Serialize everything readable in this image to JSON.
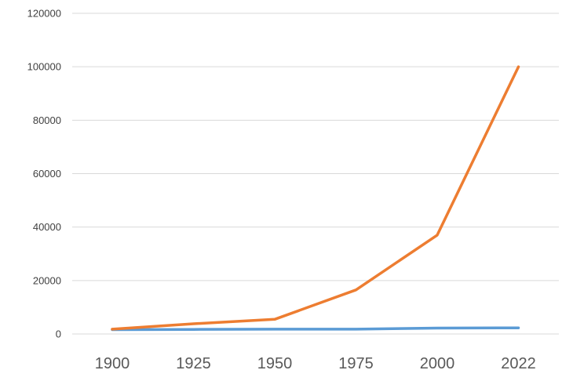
{
  "chart_data": {
    "type": "line",
    "title": "",
    "xlabel": "",
    "ylabel": "",
    "categories": [
      "1900",
      "1925",
      "1950",
      "1975",
      "2000",
      "2022"
    ],
    "yticks": [
      "0",
      "20000",
      "40000",
      "60000",
      "80000",
      "100000",
      "120000"
    ],
    "ylim": [
      0,
      120000
    ],
    "grid": true,
    "legend": "none",
    "series": [
      {
        "color": "#5b9bd5",
        "values": [
          1600,
          1700,
          1800,
          1800,
          2200,
          2300
        ]
      },
      {
        "color": "#ed7d31",
        "values": [
          1800,
          3800,
          5500,
          16500,
          37000,
          100000
        ]
      }
    ]
  }
}
